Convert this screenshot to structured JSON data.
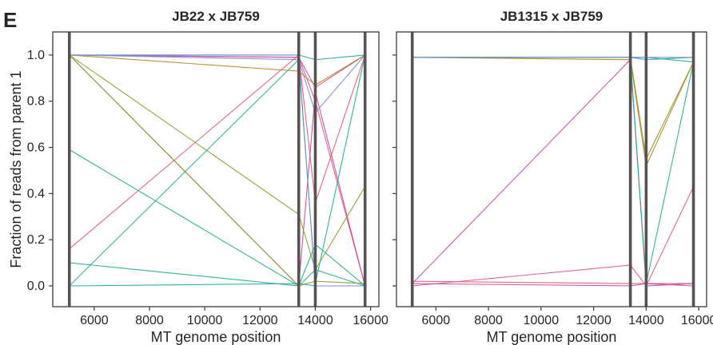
{
  "figure": {
    "panel_letter": "E",
    "ylabel": "Fraction of reads from parent 1"
  },
  "chart_data": [
    {
      "type": "line",
      "title": "JB22 x JB759",
      "xlabel": "MT genome position",
      "ylabel": "Fraction of reads from parent 1",
      "xlim": [
        4500,
        16300
      ],
      "ylim": [
        -0.09,
        1.1
      ],
      "x_ticks": [
        6000,
        8000,
        10000,
        12000,
        14000,
        16000
      ],
      "y_ticks": [
        "0.0",
        "0.2",
        "0.4",
        "0.6",
        "0.8",
        "1.0"
      ],
      "marker_positions": [
        5100,
        13400,
        14000,
        15800
      ],
      "marker_color": "#5a5252",
      "x": [
        5100,
        13400,
        14000,
        15800
      ],
      "series": [
        {
          "color": "#e0607e",
          "values": [
            0.16,
            1.0,
            0.36,
            1.0
          ]
        },
        {
          "color": "#e0607e",
          "values": [
            1.0,
            0.99,
            0.8,
            0.0
          ]
        },
        {
          "color": "#c44fad",
          "values": [
            1.0,
            0.0,
            0.84,
            0.0
          ]
        },
        {
          "color": "#c44fad",
          "values": [
            1.0,
            0.99,
            0.86,
            1.0
          ]
        },
        {
          "color": "#b58a26",
          "values": [
            1.0,
            0.93,
            0.87,
            1.0
          ]
        },
        {
          "color": "#8ea02c",
          "values": [
            1.0,
            0.31,
            0.07,
            0.43
          ]
        },
        {
          "color": "#8ea02c",
          "values": [
            1.0,
            0.0,
            0.02,
            0.01
          ]
        },
        {
          "color": "#2ab092",
          "values": [
            0.59,
            0.0,
            0.18,
            0.0
          ]
        },
        {
          "color": "#2ab092",
          "values": [
            0.1,
            0.0,
            0.07,
            0.0
          ]
        },
        {
          "color": "#2ab092",
          "values": [
            0.0,
            0.98,
            0.01,
            1.0
          ]
        },
        {
          "color": "#2fa9a9",
          "values": [
            0.0,
            0.01,
            0.0,
            0.0
          ]
        },
        {
          "color": "#2fa9a9",
          "values": [
            1.0,
            1.0,
            0.98,
            1.0
          ]
        },
        {
          "color": "#7d8fd6",
          "values": [
            1.0,
            0.98,
            0.75,
            1.0
          ]
        },
        {
          "color": "#7d8fd6",
          "values": [
            1.0,
            1.0,
            0.0,
            0.0
          ]
        }
      ]
    },
    {
      "type": "line",
      "title": "JB1315  x JB759",
      "xlabel": "MT genome position",
      "ylabel": "",
      "xlim": [
        4500,
        16300
      ],
      "ylim": [
        -0.09,
        1.1
      ],
      "x_ticks": [
        6000,
        8000,
        10000,
        12000,
        14000,
        16000
      ],
      "y_ticks": [],
      "marker_positions": [
        5100,
        13400,
        14000,
        15800
      ],
      "marker_color": "#5a5252",
      "x": [
        5100,
        13400,
        14000,
        15800
      ],
      "series": [
        {
          "color": "#e0607e",
          "values": [
            0.0,
            0.09,
            0.0,
            0.43
          ]
        },
        {
          "color": "#e0607e",
          "values": [
            0.02,
            0.01,
            0.01,
            0.01
          ]
        },
        {
          "color": "#c44fad",
          "values": [
            0.01,
            0.98,
            0.0,
            0.01
          ]
        },
        {
          "color": "#c44fad",
          "values": [
            0.01,
            0.0,
            0.01,
            0.0
          ]
        },
        {
          "color": "#b58a26",
          "values": [
            0.99,
            0.98,
            0.52,
            0.97
          ]
        },
        {
          "color": "#8ea02c",
          "values": [
            0.99,
            0.99,
            0.55,
            0.97
          ]
        },
        {
          "color": "#2ab092",
          "values": [
            0.99,
            0.99,
            0.01,
            0.97
          ]
        },
        {
          "color": "#2ab092",
          "values": [
            0.99,
            0.99,
            0.99,
            0.97
          ]
        },
        {
          "color": "#2fa9a9",
          "values": [
            0.99,
            0.99,
            0.98,
            0.99
          ]
        },
        {
          "color": "#7d8fd6",
          "values": [
            0.99,
            0.99,
            0.99,
            0.99
          ]
        }
      ]
    }
  ]
}
